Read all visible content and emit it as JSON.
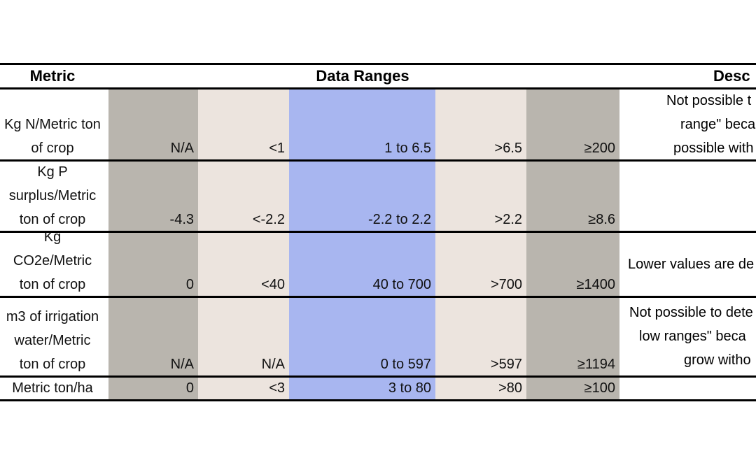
{
  "table": {
    "header": {
      "metric": "Metric",
      "ranges": "Data Ranges",
      "description": "Desc"
    },
    "rows": [
      {
        "metric": [
          "Kg N/Metric ton",
          "of crop"
        ],
        "values": [
          "N/A",
          "<1",
          "1 to 6.5",
          ">6.5",
          "≥200"
        ],
        "description": [
          "Not possible t",
          "range\" becau",
          "possible with"
        ]
      },
      {
        "metric": [
          "Kg P",
          "surplus/Metric",
          "ton of crop"
        ],
        "values": [
          "-4.3",
          "<-2.2",
          "-2.2 to 2.2",
          ">2.2",
          "≥8.6"
        ],
        "description": []
      },
      {
        "metric": [
          "Kg",
          "CO2e/Metric",
          "ton of crop"
        ],
        "values": [
          "0",
          "<40",
          "40 to 700",
          ">700",
          "≥1400"
        ],
        "description": [
          "Lower values are de"
        ]
      },
      {
        "metric": [
          "m3 of irrigation",
          "water/Metric",
          "ton of crop"
        ],
        "values": [
          "N/A",
          "N/A",
          "0 to 597",
          ">597",
          "≥1194"
        ],
        "description": [
          "Not possible to dete",
          "low ranges\" beca",
          "grow witho"
        ]
      },
      {
        "metric": [
          "Metric ton/ha"
        ],
        "values": [
          "0",
          "<3",
          "3  to 80",
          ">80",
          "≥100"
        ],
        "description": []
      }
    ]
  }
}
